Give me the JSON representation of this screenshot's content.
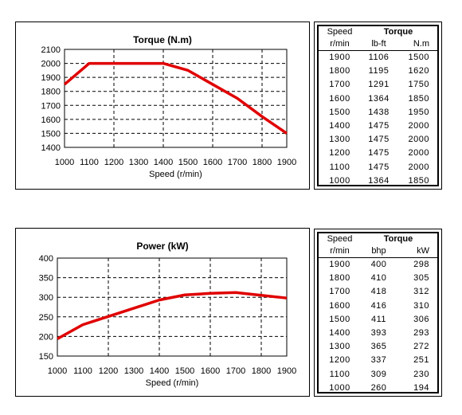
{
  "chart_data": [
    {
      "type": "line",
      "title": "Torque (N.m)",
      "xlabel": "Speed  (r/min)",
      "ylabel": "",
      "x": [
        1000,
        1100,
        1200,
        1300,
        1400,
        1500,
        1600,
        1700,
        1800,
        1900
      ],
      "series": [
        {
          "values": [
            1850,
            2000,
            2000,
            2000,
            2000,
            1950,
            1850,
            1750,
            1620,
            1500
          ],
          "color": "#e00000"
        }
      ],
      "xlim": [
        1000,
        1900
      ],
      "ylim": [
        1400,
        2100
      ],
      "x_ticks": [
        "1000",
        "1100",
        "1200",
        "1300",
        "1400",
        "1500",
        "1600",
        "1700",
        "1800",
        "1900"
      ],
      "y_ticks": [
        "1400",
        "1500",
        "1600",
        "1700",
        "1800",
        "1900",
        "2000",
        "2100"
      ],
      "grid": "dashed",
      "legend": "none"
    },
    {
      "type": "line",
      "title": "Power (kW)",
      "xlabel": "Speed (r/min)",
      "ylabel": "",
      "x": [
        1000,
        1100,
        1200,
        1300,
        1400,
        1500,
        1600,
        1700,
        1800,
        1900
      ],
      "series": [
        {
          "values": [
            194,
            230,
            251,
            272,
            293,
            306,
            310,
            312,
            305,
            298
          ],
          "color": "#e00000"
        }
      ],
      "xlim": [
        1000,
        1900
      ],
      "ylim": [
        150,
        400
      ],
      "x_ticks": [
        "1000",
        "1100",
        "1200",
        "1300",
        "1400",
        "1500",
        "1600",
        "1700",
        "1800",
        "1900"
      ],
      "y_ticks": [
        "150",
        "200",
        "250",
        "300",
        "350",
        "400"
      ],
      "grid": "dashed",
      "legend": "none"
    }
  ],
  "torque_table": {
    "speed_header": "Speed",
    "speed_unit": "r/min",
    "group_header": "Torque",
    "unit1": "lb-ft",
    "unit2": "N.m",
    "rows": [
      [
        "1900",
        "1106",
        "1500"
      ],
      [
        "1800",
        "1195",
        "1620"
      ],
      [
        "1700",
        "1291",
        "1750"
      ],
      [
        "1600",
        "1364",
        "1850"
      ],
      [
        "1500",
        "1438",
        "1950"
      ],
      [
        "1400",
        "1475",
        "2000"
      ],
      [
        "1300",
        "1475",
        "2000"
      ],
      [
        "1200",
        "1475",
        "2000"
      ],
      [
        "1100",
        "1475",
        "2000"
      ],
      [
        "1000",
        "1364",
        "1850"
      ]
    ]
  },
  "power_table": {
    "speed_header": "Speed",
    "speed_unit": "r/min",
    "group_header": "Torque",
    "unit1": "bhp",
    "unit2": "kW",
    "rows": [
      [
        "1900",
        "400",
        "298"
      ],
      [
        "1800",
        "410",
        "305"
      ],
      [
        "1700",
        "418",
        "312"
      ],
      [
        "1600",
        "416",
        "310"
      ],
      [
        "1500",
        "411",
        "306"
      ],
      [
        "1400",
        "393",
        "293"
      ],
      [
        "1300",
        "365",
        "272"
      ],
      [
        "1200",
        "337",
        "251"
      ],
      [
        "1100",
        "309",
        "230"
      ],
      [
        "1000",
        "260",
        "194"
      ]
    ]
  }
}
